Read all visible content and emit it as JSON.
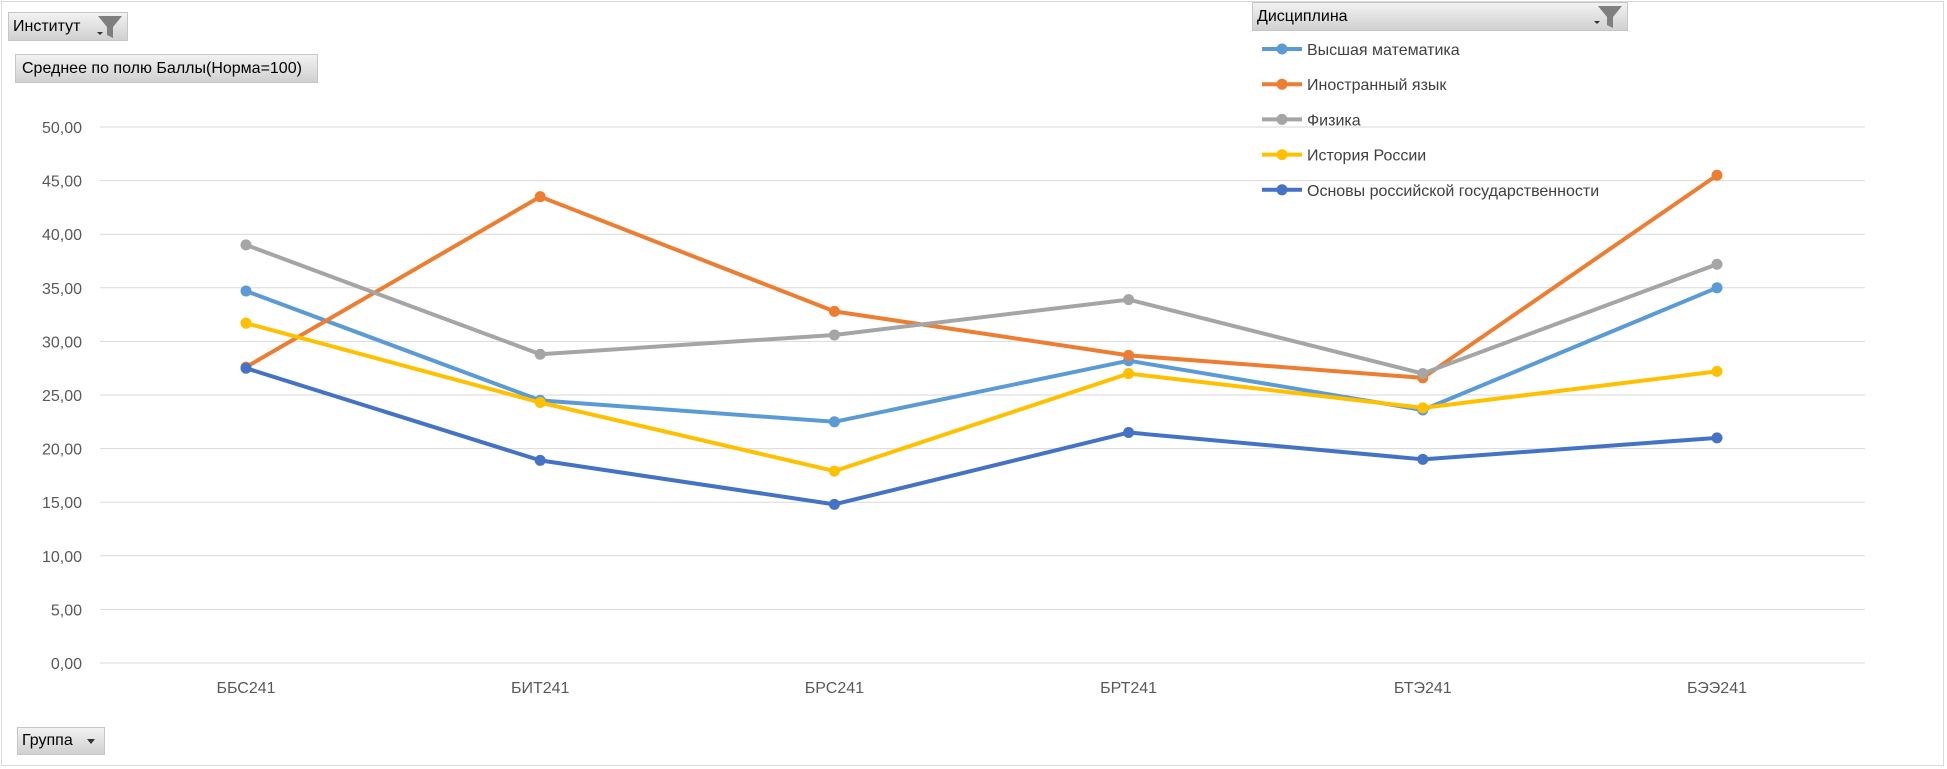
{
  "filters": {
    "institute_label": "Институт",
    "value_field_label": "Среднее по полю Баллы(Норма=100)",
    "discipline_label": "Дисциплина",
    "group_label": "Группа"
  },
  "colors": {
    "grid": "#d9d9d9",
    "tick_text": "#595959"
  },
  "chart_data": {
    "type": "line",
    "title": "",
    "xlabel": "",
    "ylabel": "",
    "categories": [
      "ББС241",
      "БИТ241",
      "БРС241",
      "БРТ241",
      "БТЭ241",
      "БЭЭ241"
    ],
    "ylim": [
      0,
      50
    ],
    "yticks": [
      "0,00",
      "5,00",
      "10,00",
      "15,00",
      "20,00",
      "25,00",
      "30,00",
      "35,00",
      "40,00",
      "45,00",
      "50,00"
    ],
    "grid": true,
    "legend_position": "top-right",
    "series": [
      {
        "name": "Высшая математика",
        "color": "#5B9BD5",
        "values": [
          34.7,
          24.5,
          22.5,
          28.2,
          23.6,
          35.0
        ]
      },
      {
        "name": "Иностранный язык",
        "color": "#ED7D31",
        "values": [
          27.6,
          43.5,
          32.8,
          28.7,
          26.6,
          45.5
        ]
      },
      {
        "name": "Физика",
        "color": "#A5A5A5",
        "values": [
          39.0,
          28.8,
          30.6,
          33.9,
          27.0,
          37.2
        ]
      },
      {
        "name": "История России",
        "color": "#FFC000",
        "values": [
          31.7,
          24.3,
          17.9,
          27.0,
          23.8,
          27.2
        ]
      },
      {
        "name": "Основы российской государственности",
        "color": "#4472C4",
        "values": [
          27.5,
          18.9,
          14.8,
          21.5,
          19.0,
          21.0
        ]
      }
    ]
  }
}
